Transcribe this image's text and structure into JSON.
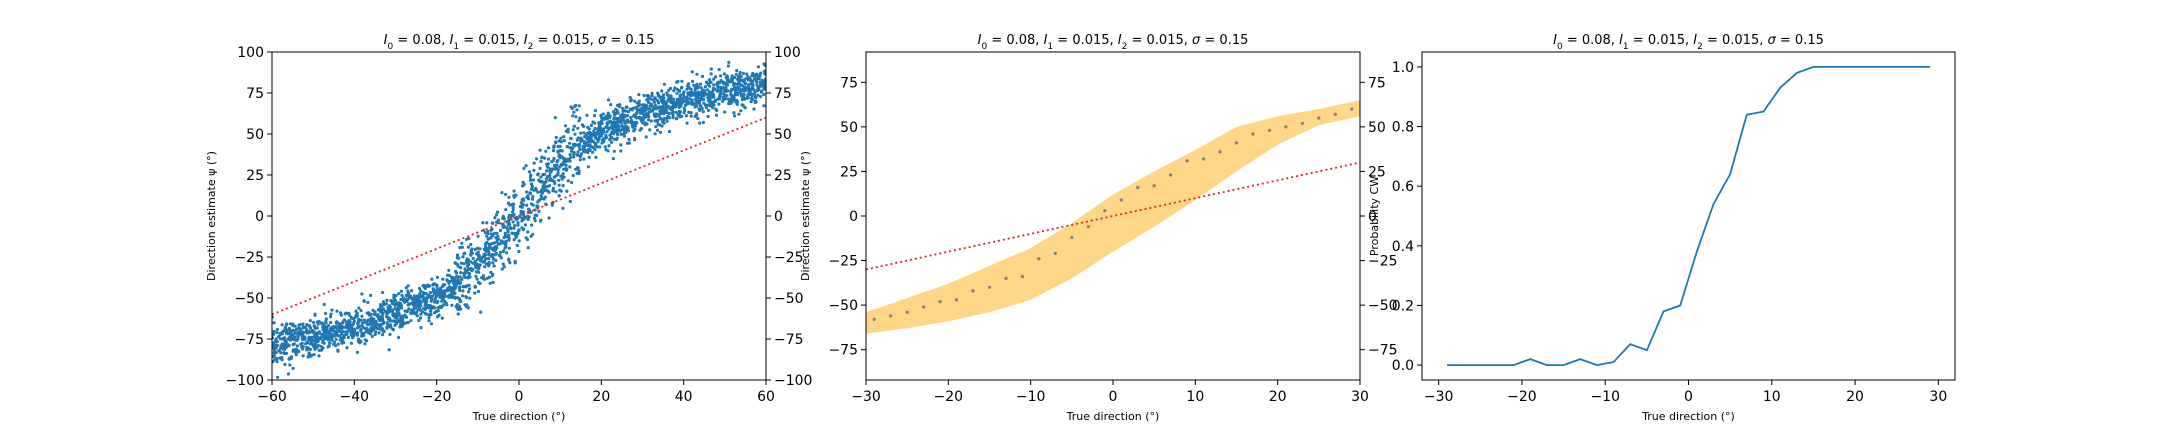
{
  "chart_data": [
    {
      "type": "scatter",
      "title": "I_0 = 0.08, I_1 = 0.015, I_2 = 0.015, σ = 0.15",
      "title_parts": {
        "I0": "0.08",
        "I1": "0.015",
        "I2": "0.015",
        "sigma": "0.15"
      },
      "xlabel": "True direction (°)",
      "ylabel": "Direction estimate ψ (°)",
      "xlim": [
        -60,
        60
      ],
      "ylim": [
        -100,
        100
      ],
      "xticks": [
        -60,
        -40,
        -20,
        0,
        20,
        40,
        60
      ],
      "yticks": [
        -100,
        -75,
        -50,
        -25,
        0,
        25,
        50,
        75,
        100
      ],
      "right_yticks": [
        -100,
        -75,
        -50,
        -25,
        0,
        25,
        50,
        75,
        100
      ],
      "grid": false,
      "scatter_color": "#1f77b4",
      "scatter_mean_curve": {
        "x": [
          -60,
          -50,
          -40,
          -30,
          -20,
          -15,
          -10,
          -5,
          0,
          5,
          10,
          15,
          20,
          30,
          40,
          50,
          60
        ],
        "y": [
          -78,
          -74,
          -68,
          -60,
          -50,
          -42,
          -30,
          -15,
          0,
          15,
          32,
          45,
          52,
          62,
          70,
          76,
          80
        ]
      },
      "scatter_spread": 6,
      "identity_line": {
        "x": [
          -60,
          60
        ],
        "y": [
          -60,
          60
        ],
        "color": "#d62728",
        "style": "dotted"
      }
    },
    {
      "type": "line",
      "title": "I_0 = 0.08, I_1 = 0.015, I_2 = 0.015, σ = 0.15",
      "title_parts": {
        "I0": "0.08",
        "I1": "0.015",
        "I2": "0.015",
        "sigma": "0.15"
      },
      "xlabel": "True direction (°)",
      "ylabel": "Direction estimate ψ (°)",
      "xlim": [
        -30,
        30
      ],
      "ylim": [
        -92,
        92
      ],
      "xticks": [
        -30,
        -20,
        -10,
        0,
        10,
        20,
        30
      ],
      "yticks": [
        -75,
        -50,
        -25,
        0,
        25,
        50,
        75
      ],
      "right_yticks": [
        -75,
        -50,
        -25,
        0,
        25,
        50,
        75
      ],
      "grid": false,
      "band_color": "#fcc85f",
      "band": {
        "x": [
          -30,
          -25,
          -20,
          -15,
          -10,
          -5,
          0,
          5,
          10,
          15,
          20,
          25,
          30
        ],
        "lower": [
          -66,
          -63,
          -59,
          -54,
          -47,
          -35,
          -20,
          -6,
          9,
          25,
          40,
          51,
          56
        ],
        "upper": [
          -54,
          -46,
          -38,
          -28,
          -18,
          -4,
          12,
          25,
          37,
          50,
          56,
          60,
          65
        ]
      },
      "points": {
        "x": [
          -29,
          -27,
          -25,
          -23,
          -21,
          -19,
          -17,
          -15,
          -13,
          -11,
          -9,
          -7,
          -5,
          -3,
          -1,
          1,
          3,
          5,
          7,
          9,
          11,
          13,
          15,
          17,
          19,
          21,
          23,
          25,
          27,
          29
        ],
        "y": [
          -58,
          -56,
          -54,
          -51,
          -48,
          -47,
          -42,
          -40,
          -35,
          -34,
          -24,
          -21,
          -12,
          -6,
          3,
          9,
          16,
          17,
          23,
          31,
          32,
          36,
          41,
          46,
          48,
          50,
          52,
          55,
          57,
          60
        ],
        "color": "#7f7f7f"
      },
      "identity_line": {
        "x": [
          -30,
          30
        ],
        "y": [
          -30,
          30
        ],
        "color": "#d62728",
        "style": "dotted"
      }
    },
    {
      "type": "line",
      "title": "I_0 = 0.08, I_1 = 0.015, I_2 = 0.015, σ = 0.15",
      "title_parts": {
        "I0": "0.08",
        "I1": "0.015",
        "I2": "0.015",
        "sigma": "0.15"
      },
      "xlabel": "True direction (°)",
      "ylabel": "Probability CW",
      "xlim": [
        -32,
        32
      ],
      "ylim": [
        -0.05,
        1.05
      ],
      "xticks": [
        -30,
        -20,
        -10,
        0,
        10,
        20,
        30
      ],
      "yticks": [
        0.0,
        0.2,
        0.4,
        0.6,
        0.8,
        1.0
      ],
      "ytick_labels": [
        "0.0",
        "0.2",
        "0.4",
        "0.6",
        "0.8",
        "1.0"
      ],
      "grid": false,
      "series": [
        {
          "color": "#1f77b4",
          "x": [
            -29,
            -27,
            -25,
            -23,
            -21,
            -19,
            -17,
            -15,
            -13,
            -11,
            -9,
            -7,
            -5,
            -3,
            -1,
            1,
            3,
            5,
            7,
            9,
            11,
            13,
            15,
            17,
            19,
            21,
            23,
            25,
            27,
            29
          ],
          "y": [
            0.0,
            0.0,
            0.0,
            0.0,
            0.0,
            0.02,
            0.0,
            0.0,
            0.02,
            0.0,
            0.01,
            0.07,
            0.05,
            0.18,
            0.2,
            0.38,
            0.54,
            0.64,
            0.84,
            0.85,
            0.93,
            0.98,
            1.0,
            1.0,
            1.0,
            1.0,
            1.0,
            1.0,
            1.0,
            1.0
          ]
        }
      ]
    }
  ]
}
